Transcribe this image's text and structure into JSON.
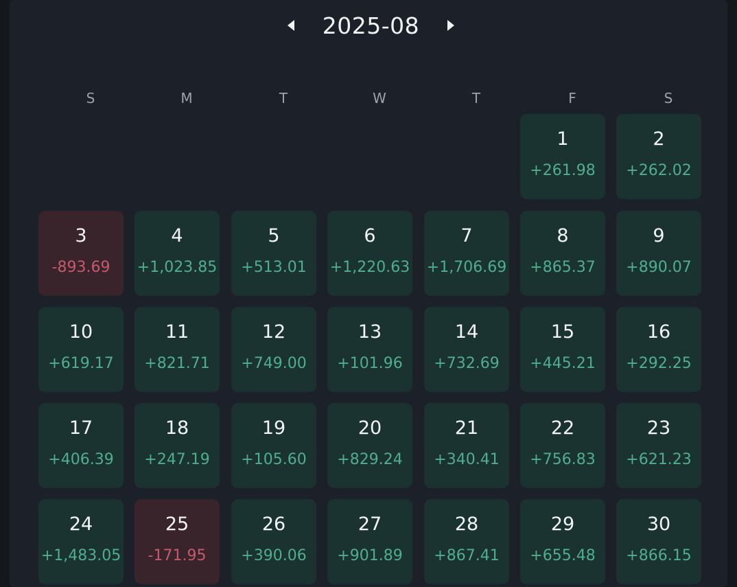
{
  "header": {
    "month": "2025-08",
    "prev_icon": "triangle-left-icon",
    "next_icon": "triangle-right-icon"
  },
  "weekdays": [
    "S",
    "M",
    "T",
    "W",
    "T",
    "F",
    "S"
  ],
  "colors": {
    "positive": "#4fae8c",
    "negative": "#c65a6c",
    "positive_cell": "#1b3330",
    "negative_cell": "#3a242b"
  },
  "days": [
    {
      "day": "1",
      "value": "+261.98",
      "type": "pos"
    },
    {
      "day": "2",
      "value": "+262.02",
      "type": "pos"
    },
    {
      "day": "3",
      "value": "-893.69",
      "type": "neg"
    },
    {
      "day": "4",
      "value": "+1,023.85",
      "type": "pos"
    },
    {
      "day": "5",
      "value": "+513.01",
      "type": "pos"
    },
    {
      "day": "6",
      "value": "+1,220.63",
      "type": "pos"
    },
    {
      "day": "7",
      "value": "+1,706.69",
      "type": "pos"
    },
    {
      "day": "8",
      "value": "+865.37",
      "type": "pos"
    },
    {
      "day": "9",
      "value": "+890.07",
      "type": "pos"
    },
    {
      "day": "10",
      "value": "+619.17",
      "type": "pos"
    },
    {
      "day": "11",
      "value": "+821.71",
      "type": "pos"
    },
    {
      "day": "12",
      "value": "+749.00",
      "type": "pos"
    },
    {
      "day": "13",
      "value": "+101.96",
      "type": "pos"
    },
    {
      "day": "14",
      "value": "+732.69",
      "type": "pos"
    },
    {
      "day": "15",
      "value": "+445.21",
      "type": "pos"
    },
    {
      "day": "16",
      "value": "+292.25",
      "type": "pos"
    },
    {
      "day": "17",
      "value": "+406.39",
      "type": "pos"
    },
    {
      "day": "18",
      "value": "+247.19",
      "type": "pos"
    },
    {
      "day": "19",
      "value": "+105.60",
      "type": "pos"
    },
    {
      "day": "20",
      "value": "+829.24",
      "type": "pos"
    },
    {
      "day": "21",
      "value": "+340.41",
      "type": "pos"
    },
    {
      "day": "22",
      "value": "+756.83",
      "type": "pos"
    },
    {
      "day": "23",
      "value": "+621.23",
      "type": "pos"
    },
    {
      "day": "24",
      "value": "+1,483.05",
      "type": "pos"
    },
    {
      "day": "25",
      "value": "-171.95",
      "type": "neg"
    },
    {
      "day": "26",
      "value": "+390.06",
      "type": "pos"
    },
    {
      "day": "27",
      "value": "+901.89",
      "type": "pos"
    },
    {
      "day": "28",
      "value": "+867.41",
      "type": "pos"
    },
    {
      "day": "29",
      "value": "+655.48",
      "type": "pos"
    },
    {
      "day": "30",
      "value": "+866.15",
      "type": "pos"
    }
  ]
}
